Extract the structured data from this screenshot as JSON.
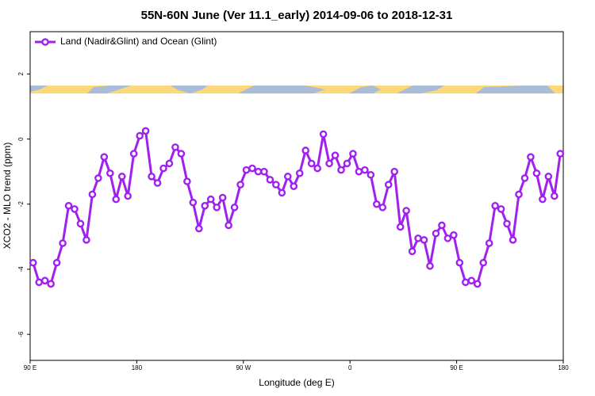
{
  "chart_data": {
    "type": "line",
    "title": "55N-60N June (Ver 11.1_early)   2014-09-06 to 2018-12-31",
    "x_label": "Longitude (deg E)",
    "y_label": "XCO2 - MLO trend (ppm)",
    "xlim": [
      90,
      540
    ],
    "ylim": [
      -6.8,
      3.3
    ],
    "xticks": [
      {
        "value": 90,
        "label": "90 E"
      },
      180,
      {
        "value": 270,
        "label": "90 W"
      },
      {
        "value": 360,
        "label": "0"
      },
      {
        "value": 450,
        "label": "90 E"
      },
      {
        "value": 540,
        "label": "180"
      }
    ],
    "yticks": [
      -6,
      -4,
      -2,
      0,
      2
    ],
    "legend": "top-left",
    "x": [
      92.5,
      97.5,
      102.5,
      107.5,
      112.5,
      117.5,
      122.5,
      127.5,
      132.5,
      137.5,
      142.5,
      147.5,
      152.5,
      157.5,
      162.5,
      167.5,
      172.5,
      177.5,
      182.5,
      187.5,
      192.5,
      197.5,
      202.5,
      207.5,
      212.5,
      217.5,
      222.5,
      227.5,
      232.5,
      237.5,
      242.5,
      247.5,
      252.5,
      257.5,
      262.5,
      267.5,
      272.5,
      277.5,
      282.5,
      287.5,
      292.5,
      297.5,
      302.5,
      307.5,
      312.5,
      317.5,
      322.5,
      327.5,
      332.5,
      337.5,
      342.5,
      347.5,
      352.5,
      357.5,
      362.5,
      367.5,
      372.5,
      377.5,
      382.5,
      387.5,
      392.5,
      397.5,
      402.5,
      407.5,
      412.5,
      417.5,
      422.5,
      427.5,
      432.5,
      437.5,
      442.5,
      447.5,
      452.5,
      457.5,
      462.5,
      467.5,
      472.5,
      477.5,
      482.5,
      487.5,
      492.5,
      497.5,
      502.5,
      507.5,
      512.5,
      517.5,
      522.5,
      527.5,
      532.5,
      537.5
    ],
    "series": [
      {
        "name": "Land (Nadir&Glint) and Ocean (Glint)",
        "color": "#a020f0",
        "values": [
          -3.8,
          -4.4,
          -4.35,
          -4.45,
          -3.8,
          -3.2,
          -2.05,
          -2.15,
          -2.6,
          -3.1,
          -1.7,
          -1.2,
          -0.55,
          -1.05,
          -1.85,
          -1.15,
          -1.75,
          -0.45,
          0.1,
          0.25,
          -1.15,
          -1.35,
          -0.9,
          -0.75,
          -0.25,
          -0.45,
          -1.3,
          -1.95,
          -2.75,
          -2.05,
          -1.85,
          -2.1,
          -1.8,
          -2.65,
          -2.1,
          -1.4,
          -0.95,
          -0.9,
          -1.0,
          -1.0,
          -1.25,
          -1.4,
          -1.65,
          -1.15,
          -1.45,
          -1.05,
          -0.35,
          -0.75,
          -0.9,
          0.15,
          -0.75,
          -0.5,
          -0.95,
          -0.75,
          -0.45,
          -1.0,
          -0.95,
          -1.1,
          -2.0,
          -2.1,
          -1.4,
          -1.0,
          -2.7,
          -2.2,
          -3.45,
          -3.05,
          -3.1,
          -3.9,
          -2.9,
          -2.65,
          -3.05,
          -2.95,
          -3.8,
          -4.4,
          -4.35,
          -4.45,
          -3.8,
          -3.2,
          -2.05,
          -2.15,
          -2.6,
          -3.1,
          -1.7,
          -1.2,
          -0.55,
          -1.05,
          -1.85,
          -1.15,
          -1.75,
          -0.45
        ]
      }
    ]
  }
}
